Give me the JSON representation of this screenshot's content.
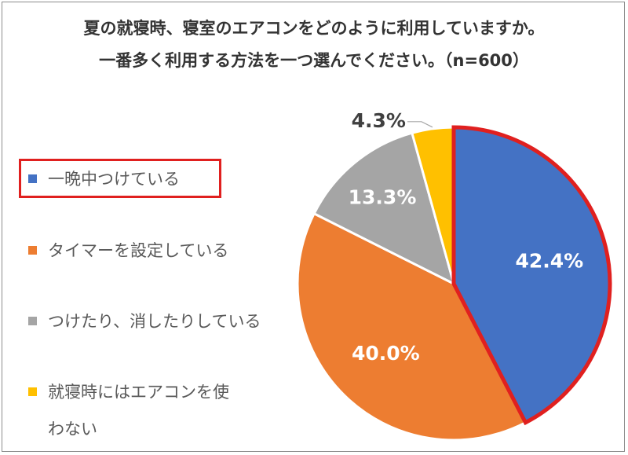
{
  "title_lines": [
    "夏の就寝時、寝室のエアコンをどのように利用していますか。",
    "一番多く利用する方法を一つ選んでください。（n=600）"
  ],
  "highlight_color": "#e0201f",
  "chart_data": {
    "type": "pie",
    "title": "夏の就寝時、寝室のエアコンをどのように利用していますか。一番多く利用する方法を一つ選んでください。（n=600）",
    "legend_position": "left",
    "slices": [
      {
        "label": "一晩中つけている",
        "value": 42.4,
        "data_label": "42.4%",
        "color": "#4472c4",
        "highlighted": true
      },
      {
        "label": "タイマーを設定している",
        "value": 40.0,
        "data_label": "40.0%",
        "color": "#ed7d31",
        "highlighted": false
      },
      {
        "label": "つけたり、消したりしている",
        "value": 13.3,
        "data_label": "13.3%",
        "color": "#a5a5a5",
        "highlighted": false
      },
      {
        "label_lines": [
          "就寝時にはエアコンを使",
          "わない"
        ],
        "label": "就寝時にはエアコンを使わない",
        "value": 4.3,
        "data_label": "4.3%",
        "color": "#ffc000",
        "highlighted": false
      }
    ]
  }
}
